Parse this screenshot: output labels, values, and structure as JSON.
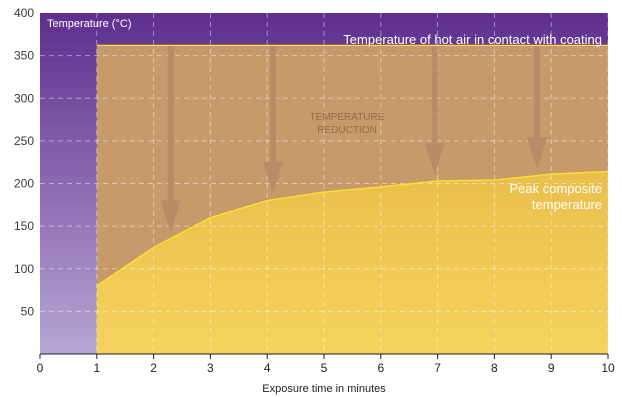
{
  "chart_data": {
    "type": "area",
    "ylabel": "Temperature (°C)",
    "xlabel": "Exposure time in minutes",
    "xlim": [
      0,
      10
    ],
    "ylim": [
      0,
      400
    ],
    "x_ticks": [
      0,
      1,
      2,
      3,
      4,
      5,
      6,
      7,
      8,
      9,
      10
    ],
    "y_ticks": [
      50,
      100,
      150,
      200,
      250,
      300,
      350,
      400
    ],
    "grid": true,
    "series": [
      {
        "name": "Temperature of hot air in contact with coating",
        "x": [
          1,
          10
        ],
        "y": [
          362,
          362
        ]
      },
      {
        "name": "Peak composite temperature",
        "x": [
          1,
          2,
          3,
          4,
          5,
          6,
          7,
          8,
          9,
          10
        ],
        "y": [
          80,
          125,
          160,
          180,
          190,
          196,
          203,
          204,
          211,
          214
        ]
      }
    ],
    "annotations": {
      "reduction_line1": "TEMPERATURE",
      "reduction_line2": "REDUCTION",
      "peak_line1": "Peak composite",
      "peak_line2": "temperature"
    },
    "arrows_at_x": [
      2.3,
      4.1,
      6.95,
      8.75
    ],
    "colors": {
      "purple_top": "#5e2e8e",
      "purple_bottom": "#b7a6d4",
      "hot_air_band": "#c79a6b",
      "composite_area": "#f0c94e",
      "line": "#ffe030",
      "arrow": "#b58b66"
    }
  }
}
